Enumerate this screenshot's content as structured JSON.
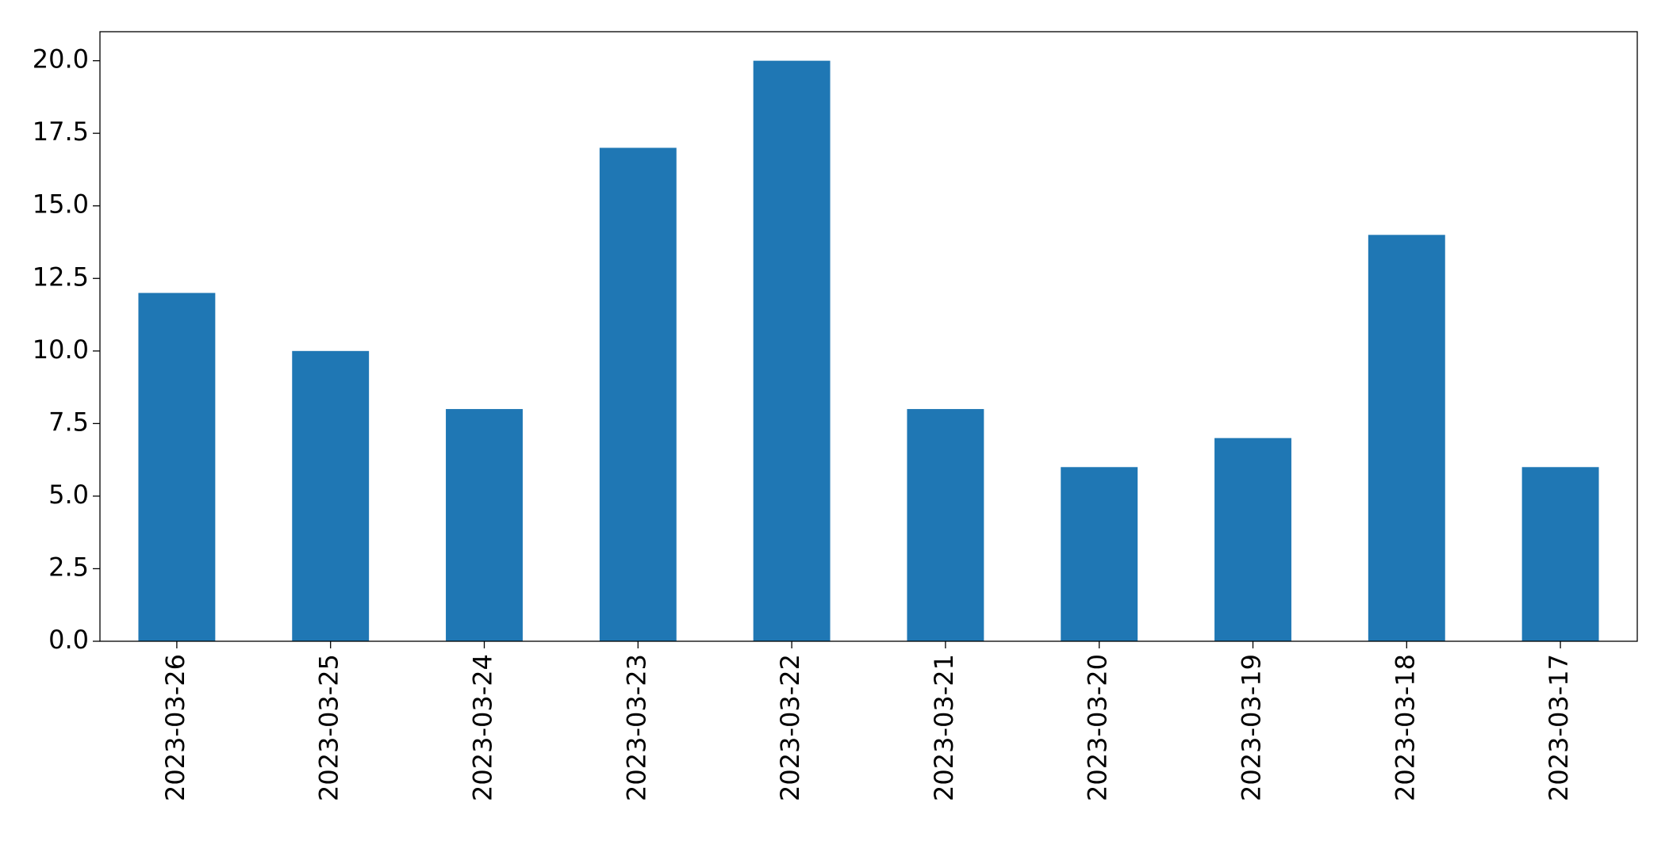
{
  "chart_data": {
    "type": "bar",
    "categories": [
      "2023-03-26",
      "2023-03-25",
      "2023-03-24",
      "2023-03-23",
      "2023-03-22",
      "2023-03-21",
      "2023-03-20",
      "2023-03-19",
      "2023-03-18",
      "2023-03-17"
    ],
    "values": [
      12,
      10,
      8,
      17,
      20,
      8,
      6,
      7,
      14,
      6
    ],
    "color": "#1f77b4",
    "ylim": [
      0,
      21
    ],
    "yticks": [
      {
        "value": 0,
        "label": "0.0"
      },
      {
        "value": 2.5,
        "label": "2.5"
      },
      {
        "value": 5,
        "label": "5.0"
      },
      {
        "value": 7.5,
        "label": "7.5"
      },
      {
        "value": 10,
        "label": "10.0"
      },
      {
        "value": 12.5,
        "label": "12.5"
      },
      {
        "value": 15,
        "label": "15.0"
      },
      {
        "value": 17.5,
        "label": "17.5"
      },
      {
        "value": 20,
        "label": "20.0"
      }
    ],
    "grid": false
  }
}
